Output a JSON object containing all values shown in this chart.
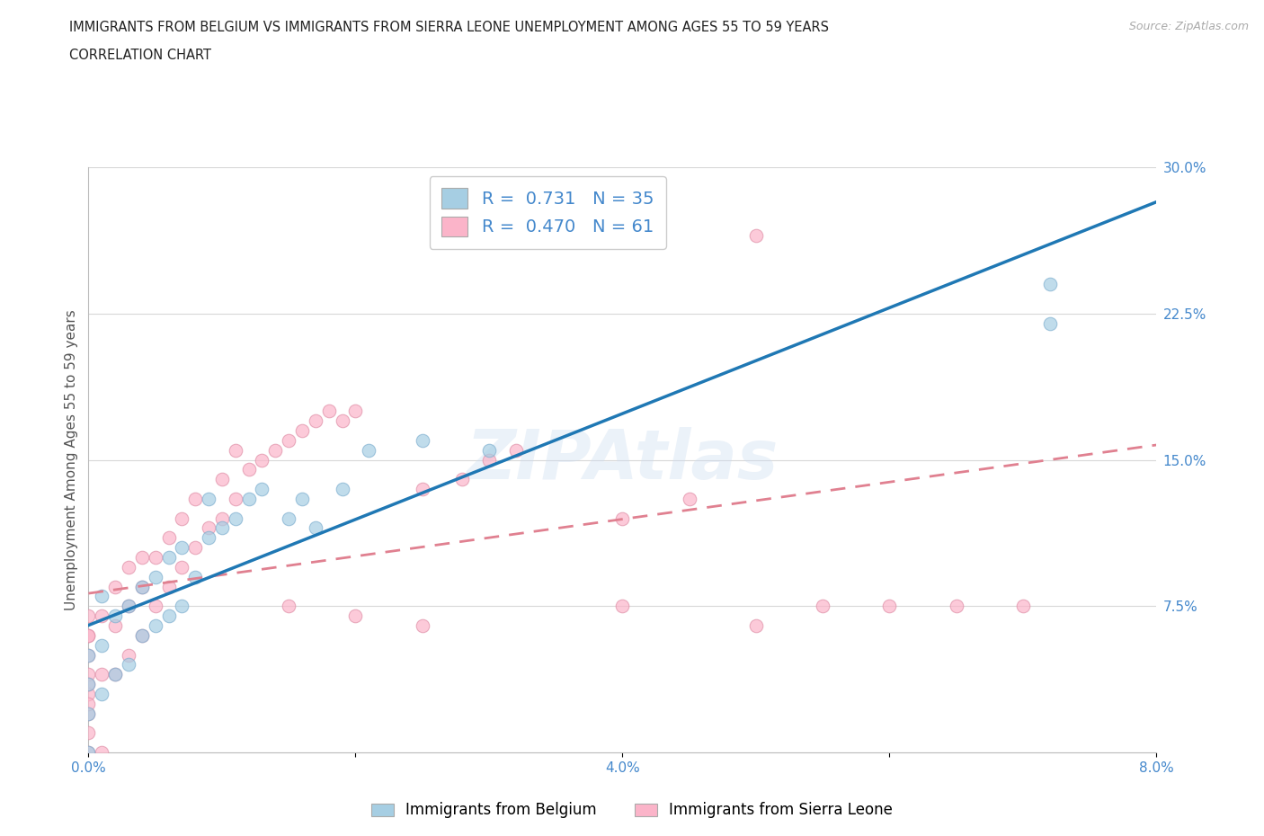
{
  "title_line1": "IMMIGRANTS FROM BELGIUM VS IMMIGRANTS FROM SIERRA LEONE UNEMPLOYMENT AMONG AGES 55 TO 59 YEARS",
  "title_line2": "CORRELATION CHART",
  "source_text": "Source: ZipAtlas.com",
  "ylabel": "Unemployment Among Ages 55 to 59 years",
  "belgium_R": "0.731",
  "belgium_N": "35",
  "sierraleone_R": "0.470",
  "sierraleone_N": "61",
  "xlim": [
    0.0,
    0.08
  ],
  "ylim": [
    0.0,
    0.3
  ],
  "xticks": [
    0.0,
    0.02,
    0.04,
    0.06,
    0.08
  ],
  "xtick_labels": [
    "0.0%",
    "",
    "4.0%",
    "",
    "8.0%"
  ],
  "ytick_labels_right": [
    "7.5%",
    "15.0%",
    "22.5%",
    "30.0%"
  ],
  "yticks_right": [
    0.075,
    0.15,
    0.225,
    0.3
  ],
  "belgium_color": "#a6cee3",
  "sierraleone_color": "#fbb4c9",
  "belgium_line_color": "#1f78b4",
  "sierraleone_line_color": "#d4a0b0",
  "sierraleone_line_dashed_color": "#e08090",
  "grid_color": "#d8d8d8",
  "background_color": "#ffffff",
  "tick_label_color": "#4488cc",
  "legend_label_belgium": "Immigrants from Belgium",
  "legend_label_sierraleone": "Immigrants from Sierra Leone",
  "belgium_scatter_x": [
    0.0,
    0.0,
    0.0,
    0.0,
    0.001,
    0.001,
    0.001,
    0.002,
    0.002,
    0.003,
    0.003,
    0.004,
    0.004,
    0.005,
    0.005,
    0.006,
    0.006,
    0.007,
    0.007,
    0.008,
    0.009,
    0.009,
    0.01,
    0.011,
    0.012,
    0.013,
    0.015,
    0.016,
    0.017,
    0.019,
    0.021,
    0.025,
    0.03,
    0.072,
    0.072
  ],
  "belgium_scatter_y": [
    0.0,
    0.02,
    0.035,
    0.05,
    0.03,
    0.055,
    0.08,
    0.04,
    0.07,
    0.045,
    0.075,
    0.06,
    0.085,
    0.065,
    0.09,
    0.07,
    0.1,
    0.075,
    0.105,
    0.09,
    0.11,
    0.13,
    0.115,
    0.12,
    0.13,
    0.135,
    0.12,
    0.13,
    0.115,
    0.135,
    0.155,
    0.16,
    0.155,
    0.22,
    0.24
  ],
  "sierraleone_scatter_x": [
    0.0,
    0.0,
    0.0,
    0.0,
    0.0,
    0.0,
    0.0,
    0.0,
    0.0,
    0.0,
    0.0,
    0.001,
    0.001,
    0.001,
    0.002,
    0.002,
    0.002,
    0.003,
    0.003,
    0.003,
    0.004,
    0.004,
    0.004,
    0.005,
    0.005,
    0.006,
    0.006,
    0.007,
    0.007,
    0.008,
    0.008,
    0.009,
    0.01,
    0.01,
    0.011,
    0.011,
    0.012,
    0.013,
    0.014,
    0.015,
    0.016,
    0.017,
    0.018,
    0.019,
    0.02,
    0.025,
    0.028,
    0.03,
    0.032,
    0.015,
    0.02,
    0.025,
    0.04,
    0.04,
    0.045,
    0.05,
    0.05,
    0.055,
    0.06,
    0.065,
    0.07
  ],
  "sierraleone_scatter_y": [
    0.0,
    0.01,
    0.02,
    0.03,
    0.04,
    0.05,
    0.06,
    0.07,
    0.025,
    0.035,
    0.06,
    0.0,
    0.04,
    0.07,
    0.04,
    0.065,
    0.085,
    0.05,
    0.075,
    0.095,
    0.06,
    0.085,
    0.1,
    0.075,
    0.1,
    0.085,
    0.11,
    0.095,
    0.12,
    0.105,
    0.13,
    0.115,
    0.12,
    0.14,
    0.13,
    0.155,
    0.145,
    0.15,
    0.155,
    0.16,
    0.165,
    0.17,
    0.175,
    0.17,
    0.175,
    0.135,
    0.14,
    0.15,
    0.155,
    0.075,
    0.07,
    0.065,
    0.12,
    0.075,
    0.13,
    0.065,
    0.265,
    0.075,
    0.075,
    0.075,
    0.075
  ]
}
